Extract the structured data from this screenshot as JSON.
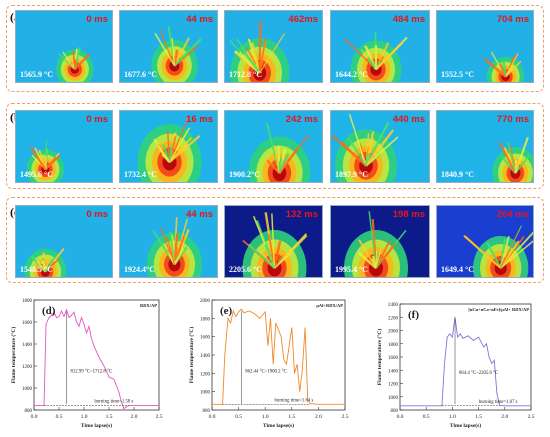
{
  "rows": [
    {
      "label": "(a)",
      "bg": "#21b1e6",
      "frames": [
        {
          "time": "0 ms",
          "temp": "1565.9 °C"
        },
        {
          "time": "44 ms",
          "temp": "1677.6 °C"
        },
        {
          "time": "462ms",
          "temp": "1712.8 °C"
        },
        {
          "time": "484 ms",
          "temp": "1644.2 °C"
        },
        {
          "time": "704 ms",
          "temp": "1552.5 °C"
        }
      ]
    },
    {
      "label": "(b)",
      "bg": "#1fb3e8",
      "frames": [
        {
          "time": "0 ms",
          "temp": "1495.6 °C"
        },
        {
          "time": "16 ms",
          "temp": "1732.4 °C"
        },
        {
          "time": "242 ms",
          "temp": "1900.2°C"
        },
        {
          "time": "440 ms",
          "temp": "1897.9 °C"
        },
        {
          "time": "770 ms",
          "temp": "1840.9 °C"
        }
      ]
    },
    {
      "label": "(c)",
      "bg": "#21b1e6",
      "frames": [
        {
          "time": "0 ms",
          "temp": "1548.5 °C"
        },
        {
          "time": "44 ms",
          "temp": "1924.4°C"
        },
        {
          "time": "132 ms",
          "temp": "2205.6 °C"
        },
        {
          "time": "198 ms",
          "temp": "1995.4 °C"
        },
        {
          "time": "264 ms",
          "temp": "1649.4 °C"
        }
      ]
    }
  ],
  "chart_data": [
    {
      "type": "line",
      "panel": "(d)",
      "legend": "RDX/AP",
      "color": "#e455c0",
      "xlabel": "Time lapse(s)",
      "ylabel": "Flame temperature (°C)",
      "xlim": [
        0,
        2.5
      ],
      "ylim": [
        800,
        1800
      ],
      "xticks": [
        "0.0",
        "0.5",
        "1.0",
        "1.5",
        "2.0",
        "2.5"
      ],
      "yticks": [
        "800",
        "1000",
        "1200",
        "1400",
        "1600",
        "1800"
      ],
      "annotation_range": "812.99 °C~1712.8 °C",
      "annotation_time": "burning time=1.58 s",
      "x": [
        0.0,
        0.2,
        0.22,
        0.24,
        0.3,
        0.35,
        0.4,
        0.45,
        0.5,
        0.55,
        0.6,
        0.65,
        0.7,
        0.75,
        0.8,
        0.85,
        0.9,
        0.95,
        1.0,
        1.05,
        1.1,
        1.15,
        1.2,
        1.3,
        1.4,
        1.5,
        1.6,
        1.7,
        1.75,
        1.8,
        1.85,
        1.9,
        2.0,
        2.5
      ],
      "y": [
        840,
        840,
        1200,
        1580,
        1640,
        1660,
        1690,
        1640,
        1650,
        1700,
        1650,
        1712,
        1640,
        1660,
        1690,
        1600,
        1560,
        1640,
        1580,
        1500,
        1560,
        1450,
        1380,
        1280,
        1200,
        1100,
        1080,
        960,
        870,
        813,
        830,
        840,
        840,
        840
      ]
    },
    {
      "type": "line",
      "panel": "(e)",
      "legend": "μAl+RDX/AP",
      "color": "#f08a2a",
      "xlabel": "Time lapse(s)",
      "ylabel": "Flame temperature (°C)",
      "xlim": [
        0,
        2.5
      ],
      "ylim": [
        800,
        2000
      ],
      "xticks": [
        "0.0",
        "0.5",
        "1.0",
        "1.5",
        "2.0",
        "2.5"
      ],
      "yticks": [
        "800",
        "1000",
        "1200",
        "1400",
        "1600",
        "1800",
        "2000"
      ],
      "annotation_range": "862.44 °C~1900.2 °C",
      "annotation_time": "burning time=1.64 s",
      "x": [
        0.0,
        0.2,
        0.24,
        0.3,
        0.35,
        0.4,
        0.45,
        0.5,
        0.55,
        0.6,
        0.7,
        0.8,
        0.9,
        1.0,
        1.05,
        1.1,
        1.15,
        1.2,
        1.3,
        1.35,
        1.4,
        1.5,
        1.55,
        1.6,
        1.65,
        1.7,
        1.75,
        1.8,
        1.85,
        2.0,
        2.5
      ],
      "y": [
        862,
        862,
        1400,
        1800,
        1750,
        1880,
        1820,
        1870,
        1900,
        1860,
        1880,
        1850,
        1800,
        1870,
        1500,
        1800,
        1300,
        1750,
        1600,
        1350,
        1300,
        1700,
        1200,
        1300,
        1000,
        1250,
        1700,
        900,
        870,
        862,
        862
      ]
    },
    {
      "type": "line",
      "panel": "(f)",
      "legend": "[nCu+nCo+nFe]/μAl+ RDX/AP",
      "color": "#8a6fd6",
      "xlabel": "Time lapse(s)",
      "ylabel": "Flame temperature (°C)",
      "xlim": [
        0,
        2.5
      ],
      "ylim": [
        800,
        2400
      ],
      "xticks": [
        "0.0",
        "0.5",
        "1.0",
        "1.5",
        "2.0",
        "2.5"
      ],
      "yticks": [
        "800",
        "1000",
        "1200",
        "1400",
        "1600",
        "1800",
        "2000",
        "2200",
        "2400"
      ],
      "annotation_range": "864.4 °C~2205.6 °C",
      "annotation_time": "burning time=1.07 s",
      "x": [
        0.0,
        0.8,
        0.85,
        0.9,
        0.95,
        1.0,
        1.05,
        1.1,
        1.15,
        1.2,
        1.3,
        1.4,
        1.5,
        1.6,
        1.65,
        1.7,
        1.75,
        1.8,
        1.85,
        1.9,
        2.0,
        2.5
      ],
      "y": [
        864,
        864,
        1500,
        1900,
        1950,
        1900,
        2205,
        1900,
        1950,
        1880,
        1920,
        1850,
        1900,
        1750,
        1800,
        1600,
        1500,
        1550,
        1050,
        870,
        864,
        864
      ]
    }
  ]
}
